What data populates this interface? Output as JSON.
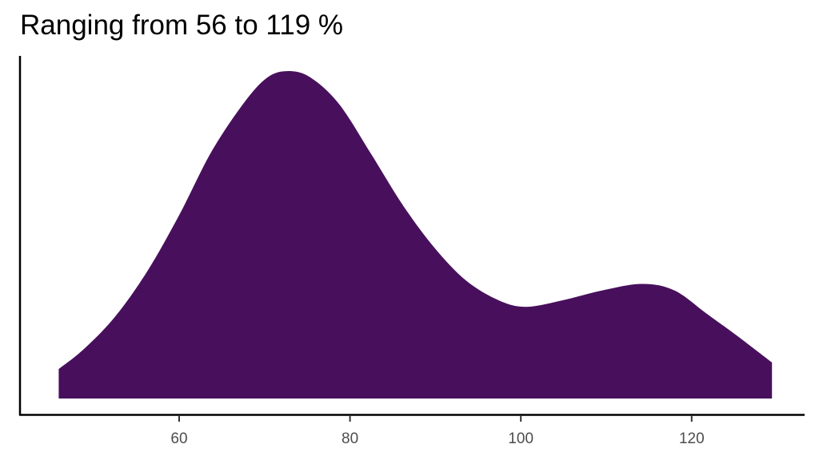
{
  "title": "Ranging from 56 to 119 %",
  "colors": {
    "fill": "#48105c",
    "axis": "#000000",
    "tick_label": "#4d4d4d",
    "background": "#ffffff"
  },
  "chart_data": {
    "type": "area",
    "subtype": "density",
    "title": "Ranging from 56 to 119 %",
    "xlabel": "",
    "ylabel": "",
    "xlim": [
      42,
      134
    ],
    "x_ticks": [
      60,
      80,
      100,
      120
    ],
    "y_ticks": [],
    "grid": false,
    "legend": null,
    "fill_color": "#48105c",
    "baseline_offset": true,
    "x": [
      45.9,
      48.8,
      52.5,
      56.3,
      60.0,
      63.7,
      67.5,
      70.3,
      72.8,
      75.4,
      78.7,
      82.4,
      86.2,
      89.9,
      93.6,
      97.4,
      100.6,
      104.9,
      109.5,
      114.2,
      118.0,
      121.7,
      125.4,
      129.4
    ],
    "density_relative": [
      0.09,
      0.15,
      0.25,
      0.39,
      0.56,
      0.75,
      0.9,
      0.98,
      1.0,
      0.98,
      0.9,
      0.75,
      0.59,
      0.46,
      0.36,
      0.3,
      0.28,
      0.3,
      0.33,
      0.35,
      0.33,
      0.26,
      0.19,
      0.11
    ]
  }
}
